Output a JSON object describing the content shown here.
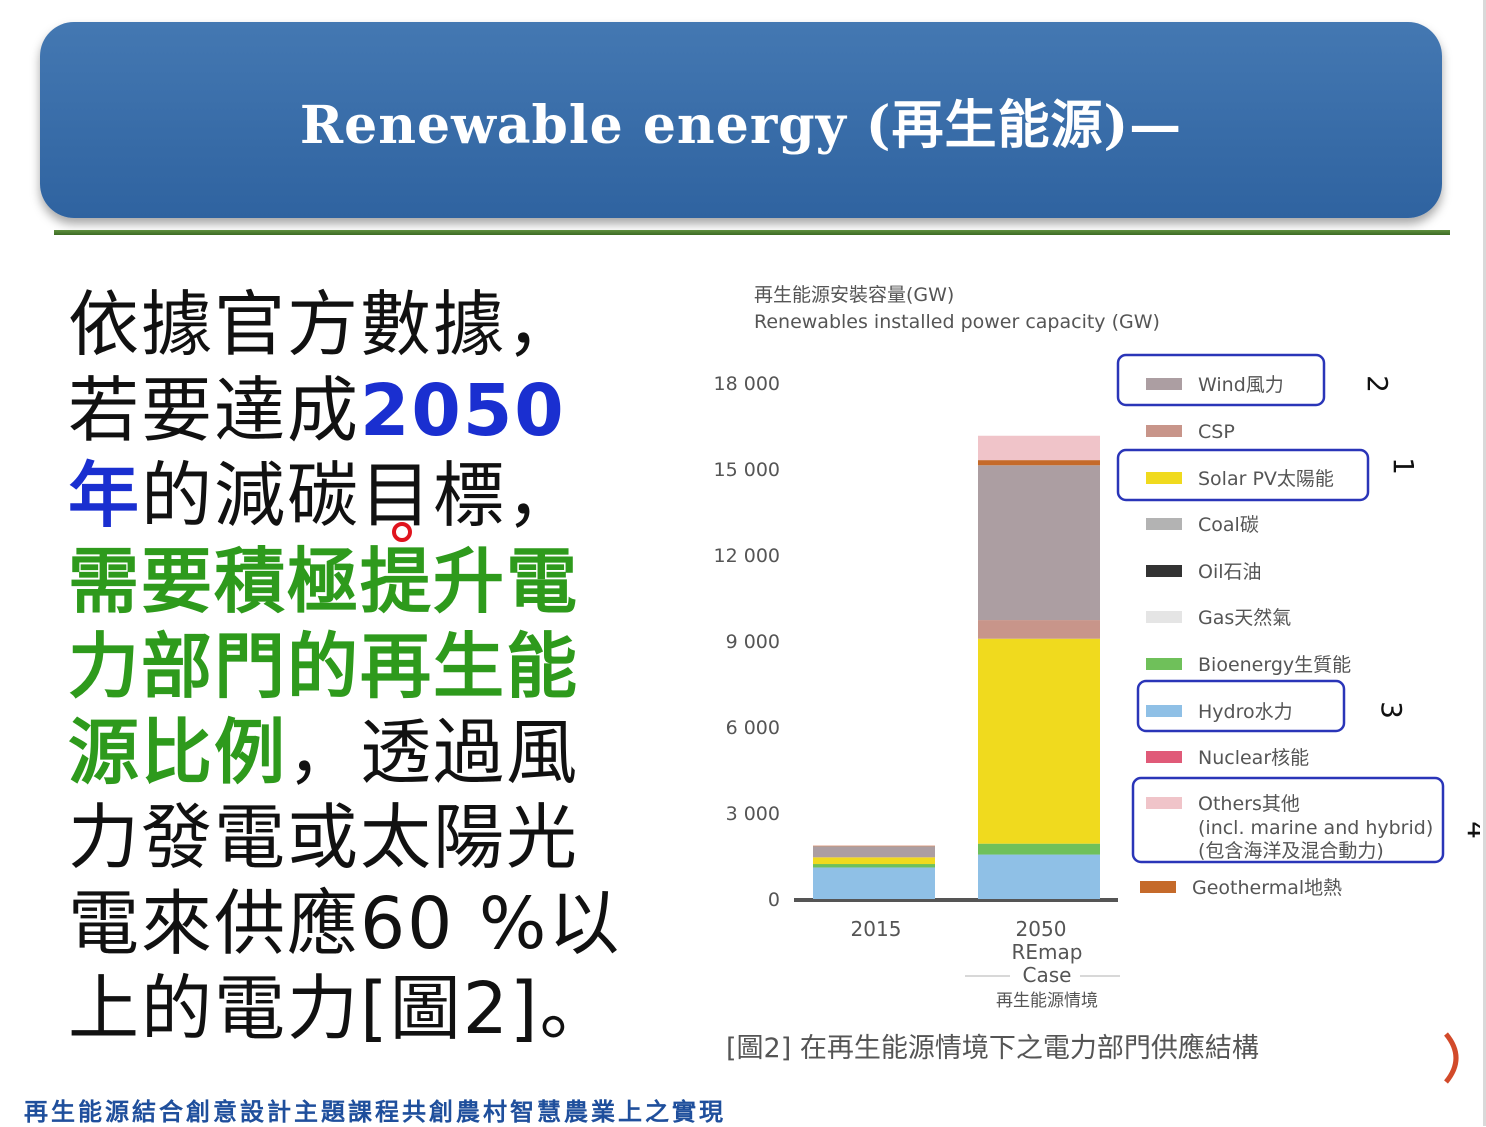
{
  "slide": {
    "title": "Renewable energy (再生能源)—",
    "body": {
      "part1": "依據官方數據，若要達成",
      "highlight_blue": "2050年",
      "part2": "的減碳目標，",
      "highlight_green": "需要積極提升電力部門的再生能源比例",
      "part3": "，透過風力發電或太陽光電來供應60 %以上的電力[圖2]。"
    },
    "footer": "再生能源結合創意設計主題課程共創農村智慧農業上之實現"
  },
  "chart_data": {
    "type": "bar",
    "stacked": true,
    "title": "再生能源安裝容量(GW)",
    "subtitle": "Renewables installed power capacity (GW)",
    "ylim": [
      0,
      18000
    ],
    "yticks": [
      "0",
      "3 000",
      "6 000",
      "9 000",
      "12 000",
      "15 000",
      "18 000"
    ],
    "ytick_values": [
      0,
      3000,
      6000,
      9000,
      12000,
      15000,
      18000
    ],
    "categories": [
      "2015",
      "2050"
    ],
    "category_sublabel": [
      "REmap",
      "Case",
      "再生能源情境"
    ],
    "series": [
      {
        "name": "Hydro水力",
        "color": "#8fc0e6",
        "values": [
          1100,
          1550
        ]
      },
      {
        "name": "Bioenergy生質能",
        "color": "#6fc05a",
        "values": [
          120,
          380
        ]
      },
      {
        "name": "Solar PV太陽能",
        "color": "#f0da1e",
        "values": [
          230,
          7150
        ]
      },
      {
        "name": "CSP",
        "color": "#c8958a",
        "values": [
          10,
          650
        ]
      },
      {
        "name": "Wind風力",
        "color": "#ac9ea2",
        "values": [
          380,
          5400
        ]
      },
      {
        "name": "Geothermal地熱",
        "color": "#c56a2a",
        "values": [
          20,
          180
        ]
      },
      {
        "name": "Others其他",
        "color": "#f0c4c9",
        "values": [
          10,
          850
        ]
      }
    ],
    "legend": [
      {
        "label": "Wind風力",
        "color": "#ac9ea2",
        "boxed": true,
        "marker": "2"
      },
      {
        "label": "CSP",
        "color": "#c8958a",
        "boxed": false,
        "marker": ""
      },
      {
        "label": "Solar PV太陽能",
        "color": "#f0da1e",
        "boxed": true,
        "marker": "1"
      },
      {
        "label": "Coal碳",
        "color": "#b3b3b3",
        "boxed": false,
        "marker": ""
      },
      {
        "label": "Oil石油",
        "color": "#333333",
        "boxed": false,
        "marker": ""
      },
      {
        "label": "Gas天然氣",
        "color": "#e5e5e5",
        "boxed": false,
        "marker": ""
      },
      {
        "label": "Bioenergy生質能",
        "color": "#6fc05a",
        "boxed": false,
        "marker": ""
      },
      {
        "label": "Hydro水力",
        "color": "#8fc0e6",
        "boxed": true,
        "marker": "3"
      },
      {
        "label": "Nuclear核能",
        "color": "#e05a78",
        "boxed": false,
        "marker": ""
      },
      {
        "label": "Others其他",
        "label_lines": [
          "(incl. marine and hybrid)",
          "(包含海洋及混合動力)"
        ],
        "color": "#f0c4c9",
        "boxed": true,
        "marker": "4"
      },
      {
        "label": "Geothermal地熱",
        "color": "#c56a2a",
        "boxed": false,
        "marker": ""
      }
    ],
    "caption": "[圖2] 在再生能源情境下之電力部門供應結構",
    "legend_position": "right",
    "grid": false
  }
}
